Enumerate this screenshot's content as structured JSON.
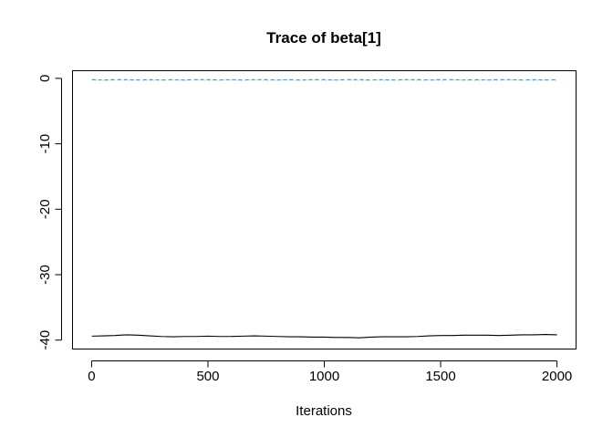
{
  "chart_data": {
    "type": "line",
    "title": "Trace of beta[1]",
    "xlabel": "Iterations",
    "ylabel": "",
    "xlim": [
      -80,
      2080
    ],
    "ylim": [
      -41.3,
      1.1
    ],
    "x_ticks": [
      0,
      500,
      1000,
      1500,
      2000
    ],
    "x_tick_labels": [
      "0",
      "500",
      "1000",
      "1500",
      "2000"
    ],
    "y_ticks": [
      0,
      -10,
      -20,
      -30,
      -40
    ],
    "y_tick_labels": [
      "0",
      "-10",
      "-20",
      "-30",
      "-40"
    ],
    "grid": false,
    "legend": "none",
    "series": [
      {
        "color": "#000000",
        "style": "solid",
        "x": [
          1,
          50,
          100,
          150,
          200,
          250,
          300,
          350,
          400,
          450,
          500,
          550,
          600,
          650,
          700,
          750,
          800,
          850,
          900,
          950,
          1000,
          1050,
          1100,
          1150,
          1200,
          1250,
          1300,
          1350,
          1400,
          1450,
          1500,
          1550,
          1600,
          1650,
          1700,
          1750,
          1800,
          1850,
          1900,
          1950,
          2000
        ],
        "values": [
          -39.4,
          -39.35,
          -39.3,
          -39.2,
          -39.25,
          -39.35,
          -39.45,
          -39.5,
          -39.45,
          -39.45,
          -39.4,
          -39.45,
          -39.45,
          -39.4,
          -39.35,
          -39.4,
          -39.45,
          -39.5,
          -39.5,
          -39.55,
          -39.55,
          -39.6,
          -39.6,
          -39.65,
          -39.55,
          -39.5,
          -39.5,
          -39.5,
          -39.45,
          -39.35,
          -39.3,
          -39.3,
          -39.25,
          -39.25,
          -39.25,
          -39.3,
          -39.25,
          -39.2,
          -39.2,
          -39.15,
          -39.2
        ]
      },
      {
        "color": "#2297e6",
        "style": "dashed",
        "x": [
          1,
          50,
          100,
          150,
          200,
          250,
          300,
          350,
          400,
          450,
          500,
          550,
          600,
          650,
          700,
          750,
          800,
          850,
          900,
          950,
          1000,
          1050,
          1100,
          1150,
          1200,
          1250,
          1300,
          1350,
          1400,
          1450,
          1500,
          1550,
          1600,
          1650,
          1700,
          1750,
          1800,
          1850,
          1900,
          1950,
          2000
        ],
        "values": [
          -0.2,
          -0.25,
          -0.2,
          -0.2,
          -0.25,
          -0.2,
          -0.25,
          -0.2,
          -0.25,
          -0.2,
          -0.2,
          -0.25,
          -0.2,
          -0.25,
          -0.2,
          -0.2,
          -0.25,
          -0.2,
          -0.25,
          -0.2,
          -0.2,
          -0.25,
          -0.2,
          -0.2,
          -0.25,
          -0.2,
          -0.25,
          -0.2,
          -0.2,
          -0.25,
          -0.2,
          -0.2,
          -0.25,
          -0.2,
          -0.25,
          -0.2,
          -0.2,
          -0.25,
          -0.2,
          -0.25,
          -0.2
        ]
      },
      {
        "color": "#61d04f",
        "style": "dotted",
        "x": [
          1,
          50,
          100,
          150,
          200,
          250,
          300,
          350,
          400,
          450,
          500,
          550,
          600,
          650,
          700,
          750,
          800,
          850,
          900,
          950,
          1000,
          1050,
          1100,
          1150,
          1200,
          1250,
          1300,
          1350,
          1400,
          1450,
          1500,
          1550,
          1600,
          1650,
          1700,
          1750,
          1800,
          1850,
          1900,
          1950,
          2000
        ],
        "values": [
          -0.25,
          -0.3,
          -0.25,
          -0.3,
          -0.25,
          -0.3,
          -0.25,
          -0.25,
          -0.3,
          -0.25,
          -0.3,
          -0.25,
          -0.25,
          -0.3,
          -0.25,
          -0.3,
          -0.25,
          -0.25,
          -0.3,
          -0.25,
          -0.3,
          -0.25,
          -0.25,
          -0.3,
          -0.25,
          -0.3,
          -0.25,
          -0.25,
          -0.3,
          -0.25,
          -0.3,
          -0.25,
          -0.25,
          -0.3,
          -0.25,
          -0.3,
          -0.25,
          -0.25,
          -0.3,
          -0.25,
          -0.3
        ]
      }
    ]
  }
}
